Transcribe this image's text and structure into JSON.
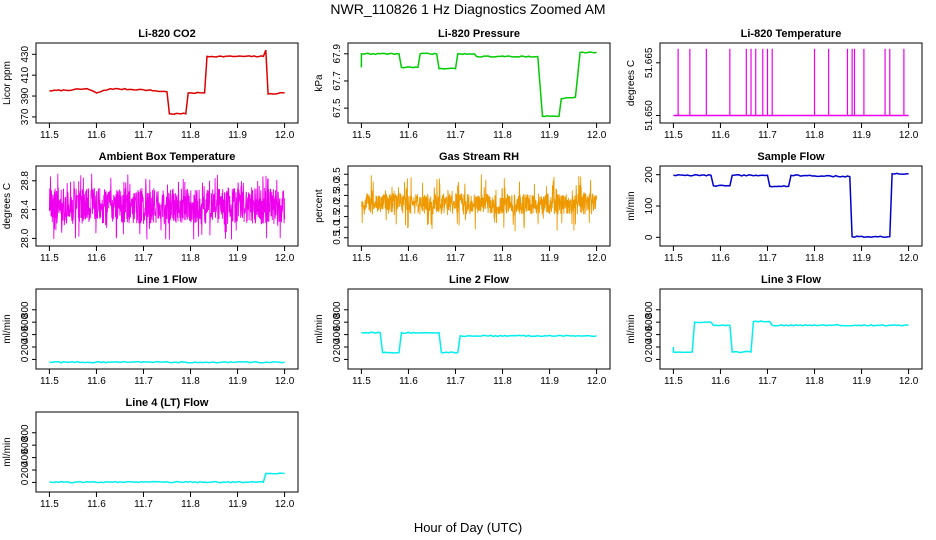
{
  "figure": {
    "title": "NWR_110826  1 Hz Diagnostics Zoomed AM",
    "xlabel": "Hour of Day (UTC)"
  },
  "chart_data": [
    {
      "id": "co2",
      "type": "line",
      "title": "Li-820 CO2",
      "ylabel": "Licor ppm",
      "color": "#dd0000",
      "xlim": [
        11.48,
        12.02
      ],
      "ylim": [
        368,
        437
      ],
      "xticks": [
        "11.5",
        "11.6",
        "11.7",
        "11.8",
        "11.9",
        "12.0"
      ],
      "yticks": [
        "370",
        "390",
        "410",
        "430"
      ],
      "series": [
        {
          "x": [
            11.5,
            11.55,
            11.58,
            11.6,
            11.63,
            11.7,
            11.75,
            11.755,
            11.79,
            11.795,
            11.83,
            11.835,
            11.955,
            11.96,
            11.965,
            12.0
          ],
          "y": [
            395,
            396,
            397,
            393,
            397,
            396,
            394,
            373,
            373,
            393,
            393,
            428,
            428,
            434,
            392,
            393
          ]
        }
      ]
    },
    {
      "id": "pressure",
      "type": "line",
      "title": "Li-820 Pressure",
      "ylabel": "kPa",
      "color": "#00cc00",
      "xlim": [
        11.48,
        12.02
      ],
      "ylim": [
        67.42,
        67.95
      ],
      "xticks": [
        "11.5",
        "11.6",
        "11.7",
        "11.8",
        "11.9",
        "12.0"
      ],
      "yticks": [
        "67.5",
        "67.7",
        "67.9"
      ],
      "series": [
        {
          "x": [
            11.5,
            11.5,
            11.58,
            11.585,
            11.62,
            11.625,
            11.66,
            11.665,
            11.7,
            11.705,
            11.74,
            11.745,
            11.875,
            11.885,
            11.92,
            11.925,
            11.955,
            11.965,
            12.0
          ],
          "y": [
            67.8,
            67.9,
            67.9,
            67.8,
            67.8,
            67.9,
            67.9,
            67.79,
            67.79,
            67.9,
            67.9,
            67.88,
            67.88,
            67.44,
            67.44,
            67.57,
            67.58,
            67.91,
            67.91
          ]
        }
      ]
    },
    {
      "id": "temperature",
      "type": "line",
      "title": "Li-820 Temperature",
      "ylabel": "degrees C",
      "color": "#ee00ee",
      "xlim": [
        11.48,
        12.02
      ],
      "ylim": [
        51.649,
        51.6695
      ],
      "xticks": [
        "11.5",
        "11.6",
        "11.7",
        "11.8",
        "11.9",
        "12.0"
      ],
      "yticks": [
        "51.650",
        "51.665"
      ],
      "series": [
        {
          "baseline": 51.65,
          "spike_top": 51.669,
          "spike_x": [
            11.51,
            11.535,
            11.57,
            11.62,
            11.655,
            11.665,
            11.675,
            11.69,
            11.7,
            11.71,
            11.8,
            11.83,
            11.87,
            11.88,
            11.885,
            11.905,
            11.95,
            11.96,
            11.99
          ]
        }
      ]
    },
    {
      "id": "box_temp",
      "type": "line",
      "title": "Ambient Box Temperature",
      "ylabel": "degrees C",
      "color": "#ee00ee",
      "xlim": [
        11.48,
        12.02
      ],
      "ylim": [
        27.95,
        28.95
      ],
      "xticks": [
        "11.5",
        "11.6",
        "11.7",
        "11.8",
        "11.9",
        "12.0"
      ],
      "yticks": [
        "28.0",
        "28.4",
        "28.8"
      ],
      "series": [
        {
          "y_low": 28.2,
          "y_high": 28.7,
          "y_min": 27.98,
          "y_max": 28.92
        }
      ]
    },
    {
      "id": "rh",
      "type": "line",
      "title": "Gas Stream RH",
      "ylabel": "percent",
      "color": "#ee9900",
      "xlim": [
        11.48,
        12.02
      ],
      "ylim": [
        0.3,
        3.7
      ],
      "xticks": [
        "11.5",
        "11.6",
        "11.7",
        "11.8",
        "11.9",
        "12.0"
      ],
      "yticks": [
        "0.5",
        "1.0",
        "1.5",
        "2.0",
        "2.5",
        "3.0",
        "3.5"
      ],
      "series": [
        {
          "y_low": 1.6,
          "y_high": 2.6,
          "y_min": 0.8,
          "y_max": 3.5
        }
      ]
    },
    {
      "id": "sample_flow",
      "type": "line",
      "title": "Sample Flow",
      "ylabel": "ml/min",
      "color": "#0000cc",
      "xlim": [
        11.48,
        12.02
      ],
      "ylim": [
        -15,
        215
      ],
      "xticks": [
        "11.5",
        "11.6",
        "11.7",
        "11.8",
        "11.9",
        "12.0"
      ],
      "yticks": [
        "0",
        "100",
        "200"
      ],
      "series": [
        {
          "x": [
            11.5,
            11.58,
            11.585,
            11.62,
            11.625,
            11.7,
            11.705,
            11.745,
            11.75,
            11.875,
            11.88,
            11.96,
            11.965,
            12.0
          ],
          "y": [
            198,
            198,
            165,
            165,
            198,
            198,
            163,
            163,
            198,
            194,
            2,
            2,
            203,
            203
          ]
        }
      ]
    },
    {
      "id": "line1",
      "type": "line",
      "title": "Line 1 Flow",
      "ylabel": "ml/min",
      "color": "#00eeee",
      "xlim": [
        11.48,
        12.02
      ],
      "ylim": [
        -90,
        1070
      ],
      "xticks": [
        "11.5",
        "11.6",
        "11.7",
        "11.8",
        "11.9",
        "12.0"
      ],
      "yticks": [
        "0",
        "200",
        "400",
        "600",
        "800"
      ],
      "series": [
        {
          "x": [
            11.5,
            12.0
          ],
          "y": [
            -45,
            -45
          ]
        }
      ]
    },
    {
      "id": "line2",
      "type": "line",
      "title": "Line 2 Flow",
      "ylabel": "ml/min",
      "color": "#00eeee",
      "xlim": [
        11.48,
        12.02
      ],
      "ylim": [
        -90,
        1070
      ],
      "xticks": [
        "11.5",
        "11.6",
        "11.7",
        "11.8",
        "11.9",
        "12.0"
      ],
      "yticks": [
        "0",
        "200",
        "400",
        "600",
        "800"
      ],
      "series": [
        {
          "x": [
            11.5,
            11.54,
            11.545,
            11.58,
            11.585,
            11.625,
            11.665,
            11.67,
            11.705,
            11.71,
            12.0
          ],
          "y": [
            430,
            430,
            110,
            110,
            430,
            430,
            430,
            110,
            110,
            380,
            380
          ]
        }
      ]
    },
    {
      "id": "line3",
      "type": "line",
      "title": "Line 3 Flow",
      "ylabel": "ml/min",
      "color": "#00eeee",
      "xlim": [
        11.48,
        12.02
      ],
      "ylim": [
        -90,
        1070
      ],
      "xticks": [
        "11.5",
        "11.6",
        "11.7",
        "11.8",
        "11.9",
        "12.0"
      ],
      "yticks": [
        "0",
        "200",
        "400",
        "600",
        "800"
      ],
      "series": [
        {
          "x": [
            11.5,
            11.5,
            11.54,
            11.545,
            11.58,
            11.585,
            11.62,
            11.625,
            11.665,
            11.67,
            11.705,
            11.71,
            12.0
          ],
          "y": [
            200,
            120,
            120,
            600,
            600,
            550,
            550,
            120,
            120,
            610,
            610,
            550,
            550
          ]
        }
      ]
    },
    {
      "id": "line4",
      "type": "line",
      "title": "Line 4 (LT) Flow",
      "ylabel": "ml/min",
      "color": "#00eeee",
      "xlim": [
        11.48,
        12.02
      ],
      "ylim": [
        -90,
        1070
      ],
      "xticks": [
        "11.5",
        "11.6",
        "11.7",
        "11.8",
        "11.9",
        "12.0"
      ],
      "yticks": [
        "0",
        "200",
        "400",
        "600",
        "800"
      ],
      "series": [
        {
          "x": [
            11.5,
            11.955,
            11.96,
            12.0
          ],
          "y": [
            5,
            5,
            145,
            145
          ]
        }
      ]
    }
  ]
}
